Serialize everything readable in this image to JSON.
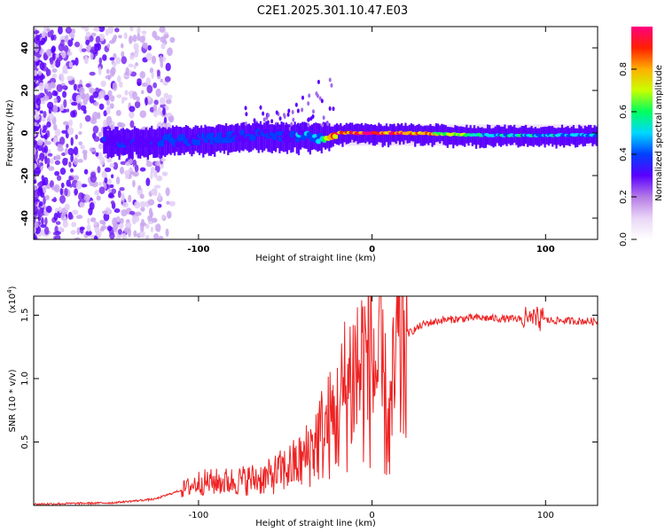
{
  "title": "C2E1.2025.301.10.47.E03",
  "chart_data": [
    {
      "type": "heatmap",
      "xlabel": "Height of straight line (km)",
      "ylabel": "Frequency (Hz)",
      "xlim": [
        -195,
        130
      ],
      "ylim": [
        -50,
        50
      ],
      "xticks": [
        -100,
        0,
        100
      ],
      "yticks": [
        -40,
        -20,
        0,
        20,
        40
      ],
      "colorbar": {
        "label": "Normalized spectral amplitude",
        "range": [
          0,
          1
        ],
        "ticks": [
          "0.0",
          "0.2",
          "0.4",
          "0.6",
          "0.8"
        ],
        "colors": [
          "#ffffff",
          "#e9d6f6",
          "#b57ae6",
          "#5a00ff",
          "#0040ff",
          "#00d8ff",
          "#00ff60",
          "#c8ff00",
          "#ffb000",
          "#ff2000",
          "#ff0080"
        ]
      },
      "ridge": {
        "description_points_x": [
          -150,
          -100,
          -60,
          -30,
          -20,
          0,
          20,
          60,
          130
        ],
        "center_freq": [
          -4,
          -3,
          -1,
          -2,
          0,
          0,
          0,
          -1,
          -1
        ],
        "peak_amplitude": [
          0.35,
          0.4,
          0.38,
          0.45,
          0.9,
          0.98,
          0.95,
          0.55,
          0.5
        ]
      }
    },
    {
      "type": "line",
      "xlabel": "Height of straight line (km)",
      "ylabel": "SNR (10 * v/v)",
      "multiplier_label": "(x10",
      "multiplier_exp": "4",
      "xlim": [
        -195,
        130
      ],
      "ylim": [
        0,
        1.65
      ],
      "xticks": [
        -100,
        0,
        100
      ],
      "yticks": [
        "0.5",
        "1.0",
        "1.5"
      ],
      "color": "#ee2222",
      "series": [
        {
          "name": "SNR",
          "x": [
            -195,
            -150,
            -125,
            -110,
            -100,
            -80,
            -60,
            -40,
            -30,
            -20,
            -15,
            -10,
            0,
            5,
            10,
            15,
            20,
            30,
            40,
            60,
            80,
            100,
            130
          ],
          "y": [
            0.01,
            0.02,
            0.05,
            0.12,
            0.18,
            0.19,
            0.22,
            0.35,
            0.55,
            0.7,
            0.92,
            1.05,
            1.15,
            1.0,
            0.6,
            1.2,
            1.35,
            1.43,
            1.46,
            1.48,
            1.47,
            1.46,
            1.45
          ]
        }
      ]
    }
  ]
}
